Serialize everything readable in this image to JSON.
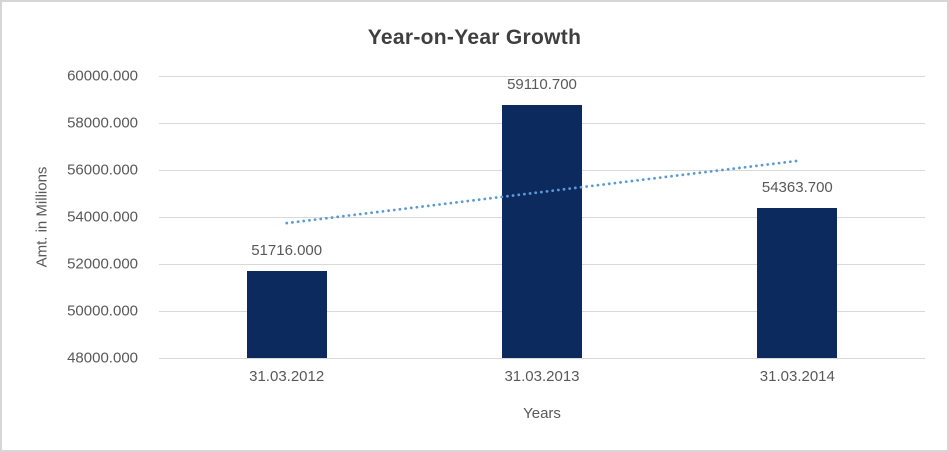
{
  "chart_data": {
    "type": "bar",
    "title": "Year-on-Year Growth",
    "xlabel": "Years",
    "ylabel": "Amt. in Millions",
    "categories": [
      "31.03.2012",
      "31.03.2013",
      "31.03.2014"
    ],
    "values": [
      51716.0,
      59110.7,
      54363.7
    ],
    "data_labels": [
      "51716.000",
      "59110.700",
      "54363.700"
    ],
    "ylim": [
      48000,
      60000
    ],
    "ytick_step": 2000,
    "ytick_labels": [
      "60000.000",
      "58000.000",
      "56000.000",
      "54000.000",
      "52000.000",
      "50000.000",
      "48000.000"
    ],
    "grid": true,
    "legend_position": "none",
    "bar_color": "#0d2a5e",
    "trendline": {
      "type": "linear",
      "style": "dotted",
      "color": "#5b9bd5",
      "start_value": 53739.6,
      "end_value": 56387.3
    }
  }
}
